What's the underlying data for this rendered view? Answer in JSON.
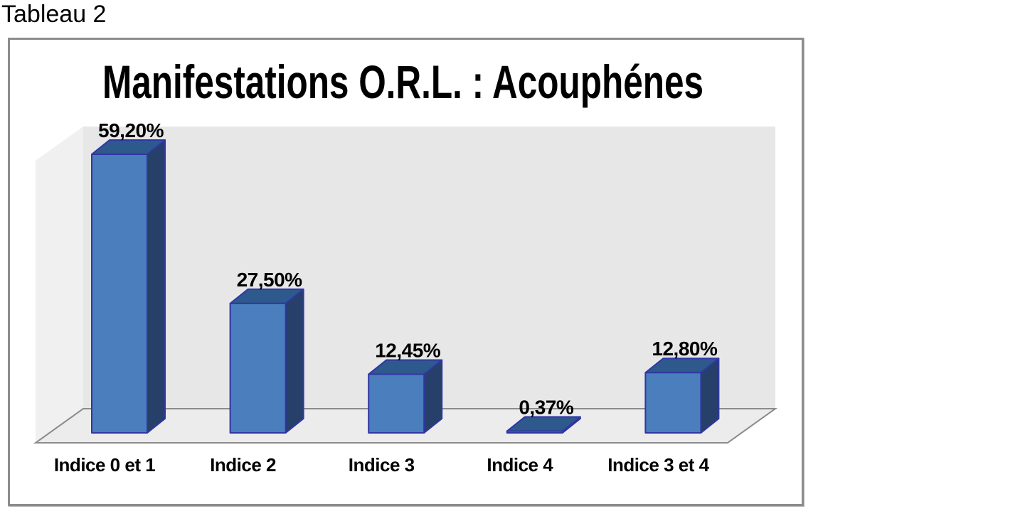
{
  "page": {
    "tableau_label": "Tableau 2"
  },
  "chart_data": {
    "type": "bar",
    "style": "3d-column",
    "title": "Manifestations O.R.L. : Acouphénes",
    "categories": [
      "Indice 0 et 1",
      "Indice 2",
      "Indice 3",
      "Indice 4",
      "Indice 3 et 4"
    ],
    "values": [
      59.2,
      27.5,
      12.45,
      0.37,
      12.8
    ],
    "value_labels": [
      "59,20%",
      "27,50%",
      "12,45%",
      "0,37%",
      "12,80%"
    ],
    "unit": "%",
    "xlabel": "",
    "ylabel": "",
    "ylim": [
      0,
      65
    ],
    "grid": false,
    "legend": "none",
    "colors": {
      "bar_front": "#4a7ebd",
      "bar_top": "#2e598c",
      "bar_side": "#26406a",
      "bar_outline": "#3136a4",
      "back_wall": "#e7e7e7",
      "side_wall": "#f0f0f0",
      "floor": "#ececec",
      "floor_edge": "#8c8c8c",
      "frame_border": "#8c8c8c",
      "text": "#000000"
    }
  }
}
